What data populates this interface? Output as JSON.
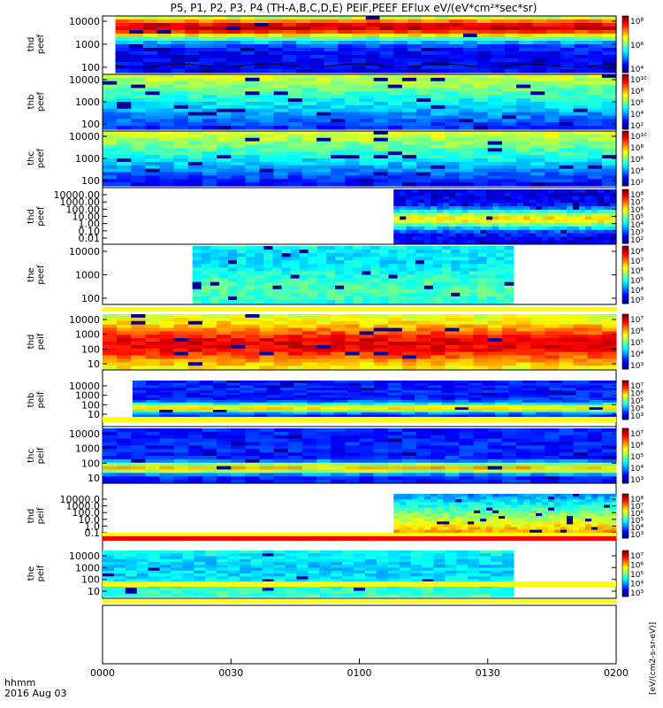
{
  "chart_data": {
    "type": "heatmap",
    "title": "P5, P1, P2, P3, P4 (TH-A,B,C,D,E) PEIF,PEEF EFlux eV/(eV*cm²*sec*sr)",
    "x_ticks": [
      "0000",
      "0030",
      "0100",
      "0130",
      "0200"
    ],
    "x_range_minutes": [
      0,
      120
    ],
    "x_label_lines": [
      "hhmm",
      "2016 Aug 03"
    ],
    "colorbar_label": "[eV/(cm2-s-sr-eV)]",
    "panels": [
      {
        "ylabel": [
          "thd",
          "peef"
        ],
        "yticks": [
          "10000",
          "1000",
          "100"
        ],
        "data_start": 3,
        "data_end": 120,
        "has_curve": true,
        "cb_ticks": [
          "10⁸",
          "10⁶",
          "10⁴"
        ]
      },
      {
        "ylabel": [
          "thb",
          "peef"
        ],
        "yticks": [
          "10000",
          "1000",
          "100"
        ],
        "data_start": 0,
        "data_end": 120,
        "cb_ticks": [
          "10¹⁰",
          "10⁸",
          "10⁶",
          "10⁴",
          "10²"
        ]
      },
      {
        "ylabel": [
          "thc",
          "peef"
        ],
        "yticks": [
          "10000",
          "1000",
          "100"
        ],
        "data_start": 0,
        "data_end": 120,
        "cb_ticks": [
          "10¹⁰",
          "10⁸",
          "10⁶",
          "10⁴",
          "10²"
        ]
      },
      {
        "ylabel": [
          "thd",
          "peef"
        ],
        "yticks": [
          "10000.00",
          "1000.00",
          "100.00",
          "10.00",
          "1.00",
          "0.10",
          "0.01"
        ],
        "data_start": 68,
        "data_end": 120,
        "cb_ticks": [
          "10⁸",
          "10⁷",
          "10⁶",
          "10⁵",
          "10⁴",
          "10³",
          "10²"
        ]
      },
      {
        "ylabel": [
          "the",
          "peef"
        ],
        "yticks": [
          "10000",
          "1000",
          "100"
        ],
        "data_start": 21,
        "data_end": 96,
        "cb_ticks": [
          "10⁸",
          "10⁷",
          "10⁶",
          "10⁵",
          "10⁴",
          "10³"
        ]
      },
      {
        "ylabel": [
          "thd",
          "peif"
        ],
        "yticks": [
          "10000",
          "1000",
          "100",
          "10"
        ],
        "data_start": 0,
        "data_end": 120,
        "cb_ticks": [
          "10⁷",
          "10⁶",
          "10⁵",
          "10⁴",
          "10³"
        ]
      },
      {
        "ylabel": [
          "thb",
          "peif"
        ],
        "yticks": [
          "10000",
          "1000",
          "100",
          "10"
        ],
        "data_start": 7,
        "data_end": 120,
        "cb_ticks": [
          "10⁷",
          "10⁶",
          "10⁵",
          "10⁴",
          "10³"
        ]
      },
      {
        "ylabel": [
          "thc",
          "peif"
        ],
        "yticks": [
          "10000",
          "1000",
          "100",
          "10"
        ],
        "data_start": 0,
        "data_end": 120,
        "cb_ticks": [
          "10⁷",
          "10⁶",
          "10⁵",
          "10⁴",
          "10³"
        ]
      },
      {
        "ylabel": [
          "thd",
          "peif"
        ],
        "yticks": [
          "10000.0",
          "1000.0",
          "100.0",
          "10.0",
          "1.0",
          "0.1"
        ],
        "data_start": 68,
        "data_end": 120,
        "cb_ticks": [
          "10⁸",
          "10⁷",
          "10⁶",
          "10⁵",
          "10⁴",
          "10³"
        ]
      },
      {
        "ylabel": [
          "the",
          "peif"
        ],
        "yticks": [
          "10000",
          "1000",
          "100",
          "10"
        ],
        "data_start": 0,
        "data_end": 96,
        "cb_ticks": [
          "10⁷",
          "10⁶",
          "10⁵",
          "10⁴",
          "10³"
        ]
      }
    ]
  }
}
